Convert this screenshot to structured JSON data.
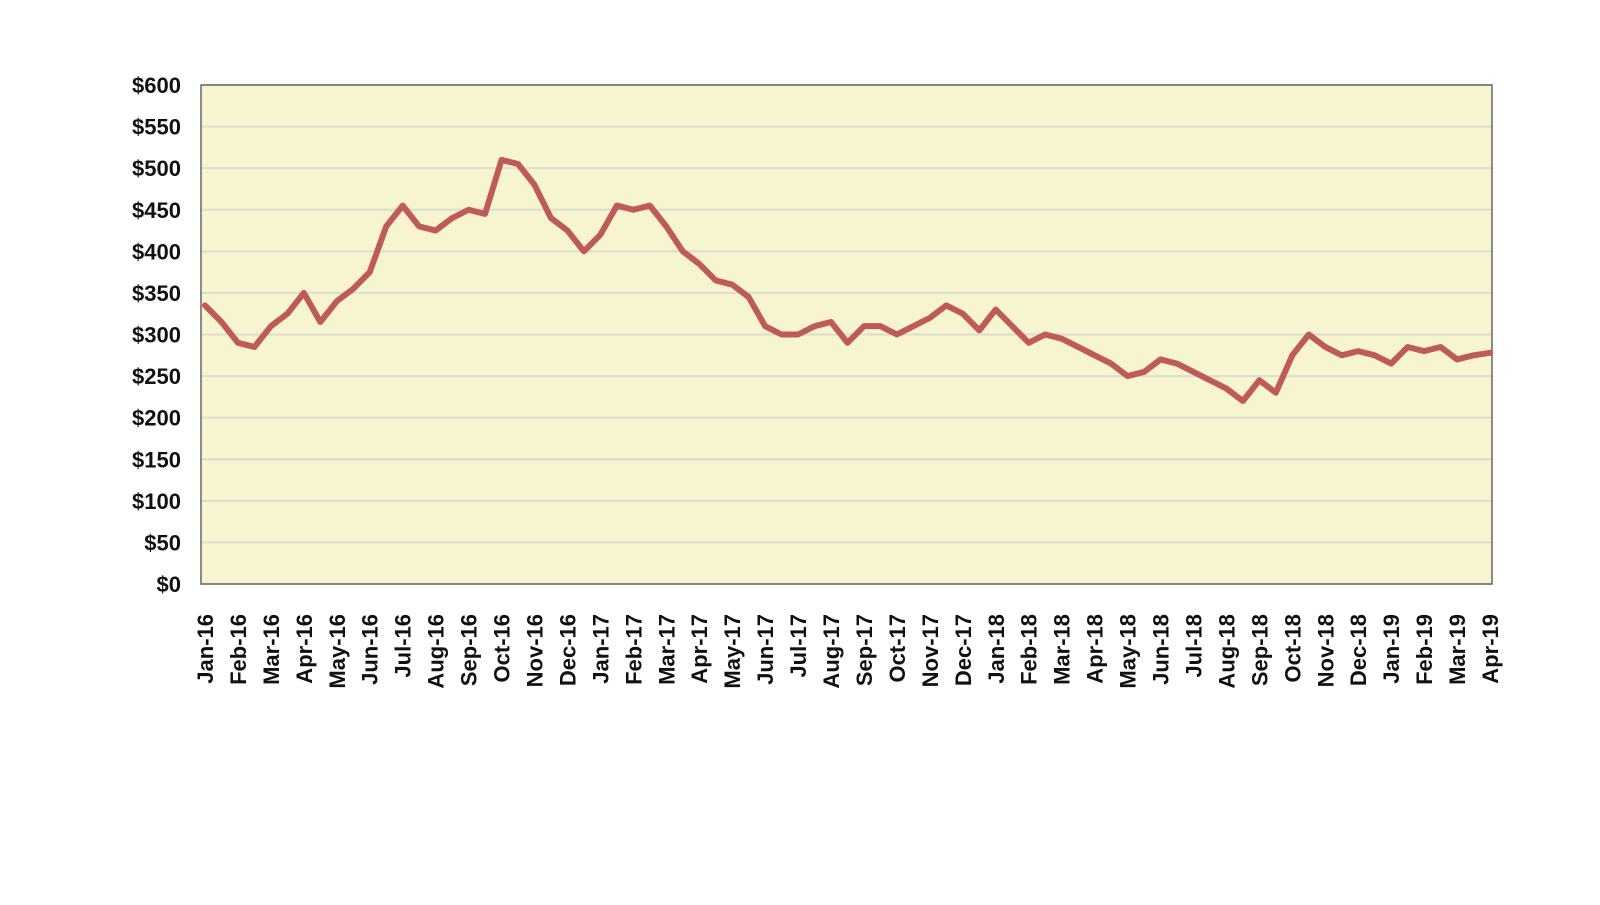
{
  "chart_data": {
    "type": "line",
    "categories": [
      "Jan-16",
      null,
      "Feb-16",
      null,
      "Mar-16",
      null,
      "Apr-16",
      null,
      "May-16",
      null,
      "Jun-16",
      null,
      "Jul-16",
      null,
      "Aug-16",
      null,
      "Sep-16",
      null,
      "Oct-16",
      null,
      "Nov-16",
      null,
      "Dec-16",
      null,
      "Jan-17",
      null,
      "Feb-17",
      null,
      "Mar-17",
      null,
      "Apr-17",
      null,
      "May-17",
      null,
      "Jun-17",
      null,
      "Jul-17",
      null,
      "Aug-17",
      null,
      "Sep-17",
      null,
      "Oct-17",
      null,
      "Nov-17",
      null,
      "Dec-17",
      null,
      "Jan-18",
      null,
      "Feb-18",
      null,
      "Mar-18",
      null,
      "Apr-18",
      null,
      "May-18",
      null,
      "Jun-18",
      null,
      "Jul-18",
      null,
      "Aug-18",
      null,
      "Sep-18",
      null,
      "Oct-18",
      null,
      "Nov-18",
      null,
      "Dec-18",
      null,
      "Jan-19",
      null,
      "Feb-19",
      null,
      "Mar-19",
      null,
      "Apr-19"
    ],
    "series": [
      {
        "color": "#bf5b57",
        "values": [
          335,
          315,
          290,
          285,
          310,
          325,
          350,
          315,
          340,
          355,
          375,
          430,
          455,
          430,
          425,
          440,
          450,
          445,
          510,
          505,
          480,
          440,
          425,
          400,
          420,
          455,
          450,
          455,
          430,
          400,
          385,
          365,
          360,
          345,
          310,
          300,
          300,
          310,
          315,
          290,
          310,
          310,
          300,
          310,
          320,
          335,
          325,
          305,
          330,
          310,
          290,
          300,
          295,
          285,
          275,
          265,
          250,
          255,
          270,
          265,
          255,
          245,
          235,
          220,
          245,
          230,
          275,
          300,
          285,
          275,
          280,
          275,
          265,
          285,
          280,
          285,
          270,
          275,
          278
        ]
      }
    ],
    "ylim": [
      0,
      600
    ],
    "yticks": [
      {
        "value": 0,
        "label": "$0"
      },
      {
        "value": 50,
        "label": "$50"
      },
      {
        "value": 100,
        "label": "$100"
      },
      {
        "value": 150,
        "label": "$150"
      },
      {
        "value": 200,
        "label": "$200"
      },
      {
        "value": 250,
        "label": "$250"
      },
      {
        "value": 300,
        "label": "$300"
      },
      {
        "value": 350,
        "label": "$350"
      },
      {
        "value": 400,
        "label": "$400"
      },
      {
        "value": 450,
        "label": "$450"
      },
      {
        "value": 500,
        "label": "$500"
      },
      {
        "value": 550,
        "label": "$550"
      },
      {
        "value": 600,
        "label": "$600"
      }
    ],
    "grid": true,
    "background": "#f7f5cf"
  }
}
